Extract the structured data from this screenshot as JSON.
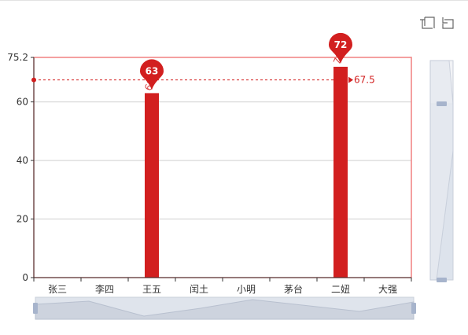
{
  "toolbar": {
    "zoom_icon": "data-zoom-icon",
    "reset_icon": "zoom-reset-icon"
  },
  "chart_data": {
    "type": "bar",
    "categories": [
      "张三",
      "李四",
      "王五",
      "闰土",
      "小明",
      "茅台",
      "二妞",
      "大强"
    ],
    "series": [
      {
        "values": [
          0,
          0,
          63,
          0,
          0,
          0,
          72,
          0
        ],
        "color": "#d21f1f"
      }
    ],
    "ylim": [
      0,
      75.2
    ],
    "yticks": [
      0,
      20,
      40,
      60,
      75.2
    ],
    "ytick_labels": [
      "0",
      "20",
      "40",
      "60",
      "75.2"
    ],
    "grid": true,
    "mark_points": [
      {
        "category": "王五",
        "value": 63,
        "label": "63"
      },
      {
        "category": "二妞",
        "value": 72,
        "label": "72"
      }
    ],
    "mark_line": {
      "type": "average",
      "value": 67.5,
      "label": "67.5"
    },
    "highlight_color": "#f08080",
    "datazoom_x": {
      "start": 0,
      "end": 100
    },
    "datazoom_y": {
      "start": 0,
      "end": 80
    }
  }
}
